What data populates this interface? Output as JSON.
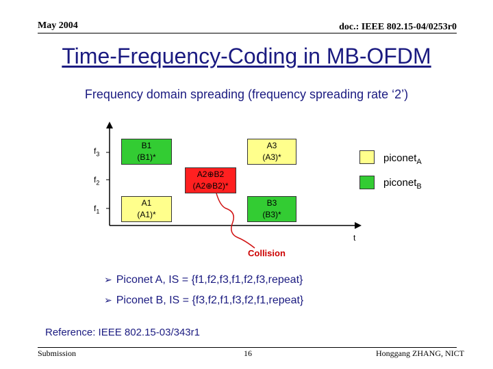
{
  "header": {
    "date": "May 2004",
    "doc": "doc.: IEEE 802.15-04/0253r0"
  },
  "title": "Time-Frequency-Coding in MB-OFDM",
  "subtitle": "Frequency domain spreading (frequency spreading rate ‘2’)",
  "diagram": {
    "y_labels": [
      {
        "main": "f",
        "sub": "3"
      },
      {
        "main": "f",
        "sub": "2"
      },
      {
        "main": "f",
        "sub": "1"
      }
    ],
    "x_label": "t",
    "blocks": {
      "b1": {
        "top": "B1",
        "bottom": "(B1)*"
      },
      "a3": {
        "top": "A3",
        "bottom": "(A3)*"
      },
      "a2b2": {
        "top": "A2⊕B2",
        "bottom": "(A2⊕B2)*"
      },
      "a1": {
        "top": "A1",
        "bottom": "(A1)*"
      },
      "b3": {
        "top": "B3",
        "bottom": "(B3)*"
      }
    },
    "collision": "Collision",
    "legend": [
      {
        "main": "piconet",
        "sub": "A",
        "color": "#ffff8c"
      },
      {
        "main": "piconet",
        "sub": "B",
        "color": "#33cc33"
      }
    ]
  },
  "bullets": [
    "Piconet A, IS = {f1,f2,f3,f1,f2,f3,repeat}",
    "Piconet B, IS = {f3,f2,f1,f3,f2,f1,repeat}"
  ],
  "reference": "Reference: IEEE 802.15-03/343r1",
  "footer": {
    "left": "Submission",
    "center": "16",
    "right": "Honggang ZHANG, NICT"
  }
}
